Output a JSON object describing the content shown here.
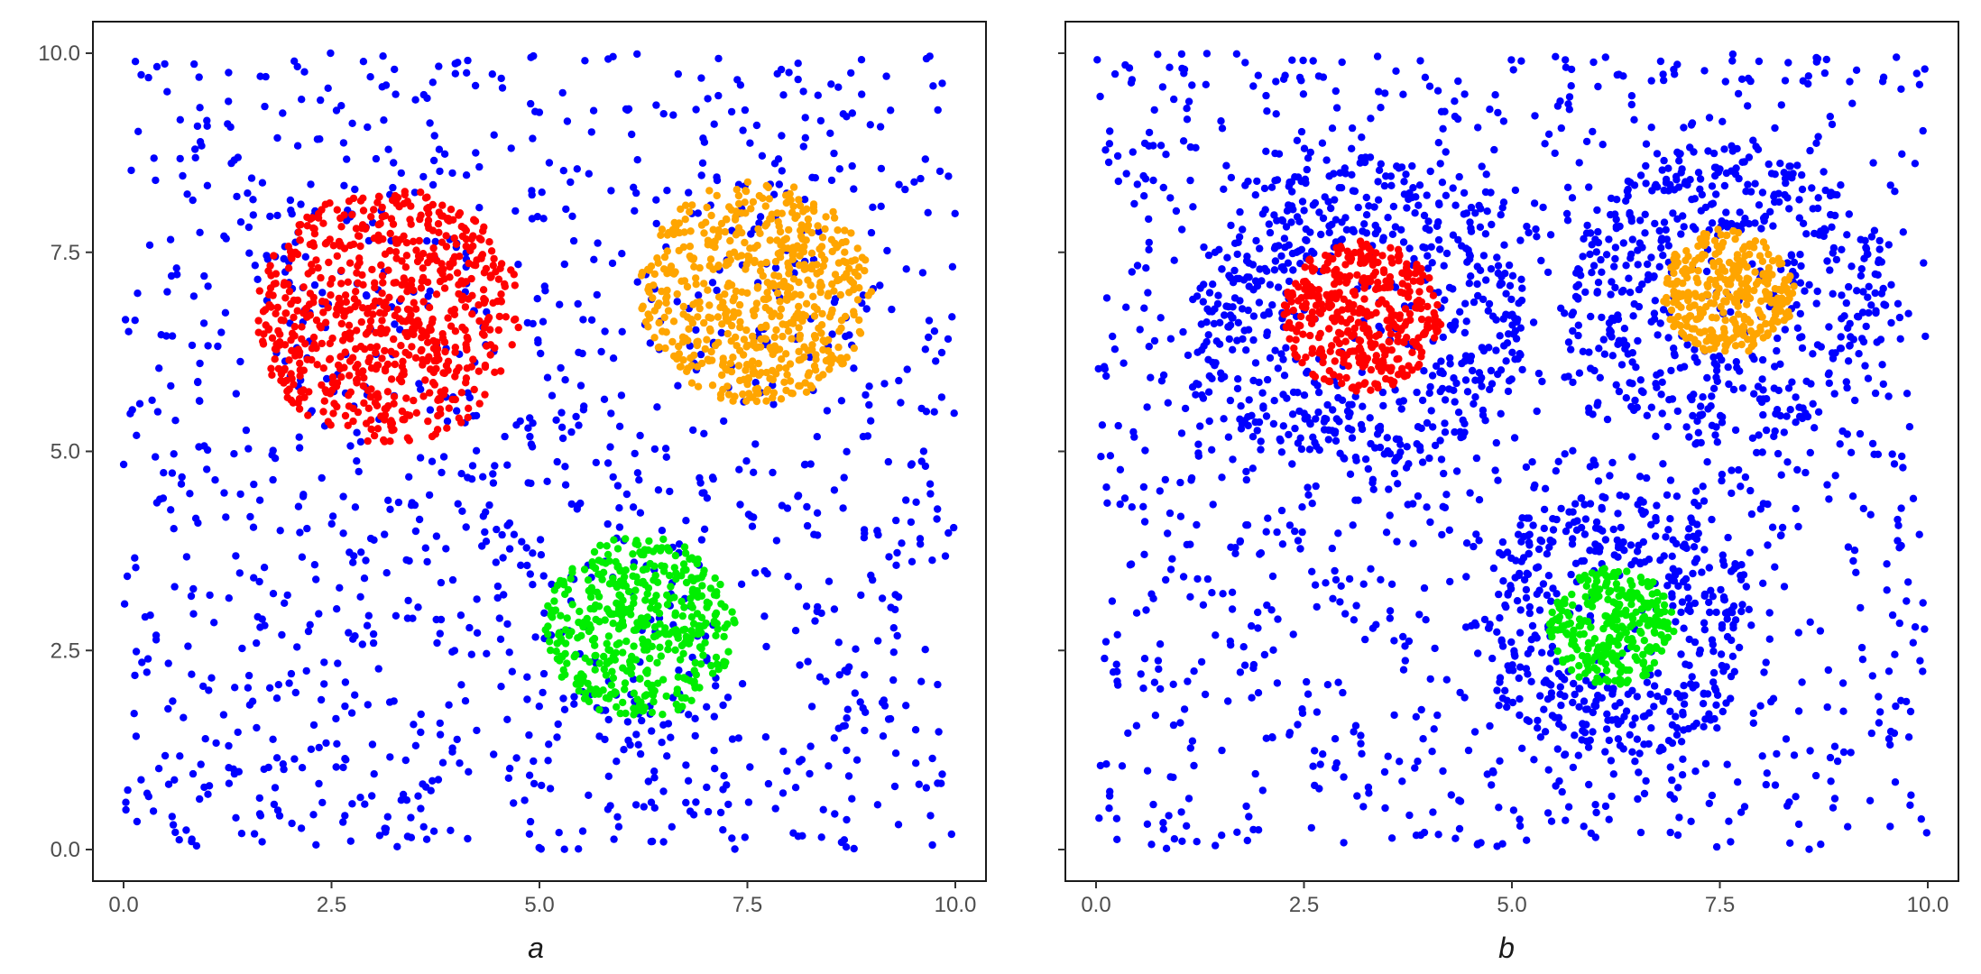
{
  "chart_data": [
    {
      "type": "scatter",
      "xlabel": "a",
      "ylabel": "",
      "xlim": [
        0,
        10
      ],
      "ylim": [
        0,
        10
      ],
      "x_ticks": [
        "0.0",
        "2.5",
        "5.0",
        "7.5",
        "10.0"
      ],
      "y_ticks": [
        "0.0",
        "2.5",
        "5.0",
        "7.5",
        "10.0"
      ],
      "grid": false,
      "series": [
        {
          "color": "#0000ff",
          "distribution": "uniform",
          "x_range": [
            0,
            10
          ],
          "y_range": [
            0,
            10
          ],
          "count": 1300
        },
        {
          "color": "#ff0000",
          "center": [
            3.2,
            6.7
          ],
          "radius": 1.6,
          "count": 700
        },
        {
          "color": "#ffa500",
          "center": [
            7.6,
            7.0
          ],
          "radius": 1.4,
          "count": 600
        },
        {
          "color": "#00ee00",
          "center": [
            6.2,
            2.8
          ],
          "radius": 1.15,
          "count": 450
        }
      ]
    },
    {
      "type": "scatter",
      "xlabel": "b",
      "ylabel": "",
      "xlim": [
        0,
        10
      ],
      "ylim": [
        0,
        10
      ],
      "x_ticks": [
        "0.0",
        "2.5",
        "5.0",
        "7.5",
        "10.0"
      ],
      "y_ticks": [
        "0.0",
        "2.5",
        "5.0",
        "7.5",
        "10.0"
      ],
      "grid": false,
      "series": [
        {
          "color": "#0000ff",
          "distribution": "uniform",
          "x_range": [
            0,
            10
          ],
          "y_range": [
            0,
            10
          ],
          "count": 1300
        },
        {
          "color": "#0000ff",
          "distribution": "ring",
          "center": [
            3.2,
            6.7
          ],
          "inner_radius": 0.95,
          "outer_radius": 2.0,
          "count": 450
        },
        {
          "color": "#0000ff",
          "distribution": "ring",
          "center": [
            7.6,
            7.0
          ],
          "inner_radius": 0.8,
          "outer_radius": 1.9,
          "count": 400
        },
        {
          "color": "#0000ff",
          "distribution": "ring",
          "center": [
            6.2,
            2.8
          ],
          "inner_radius": 0.75,
          "outer_radius": 1.7,
          "count": 350
        },
        {
          "color": "#ff0000",
          "center": [
            3.2,
            6.7
          ],
          "radius": 0.95,
          "count": 400
        },
        {
          "color": "#ffa500",
          "center": [
            7.6,
            7.0
          ],
          "radius": 0.8,
          "count": 320
        },
        {
          "color": "#00ee00",
          "center": [
            6.2,
            2.8
          ],
          "radius": 0.75,
          "count": 280
        }
      ]
    }
  ]
}
